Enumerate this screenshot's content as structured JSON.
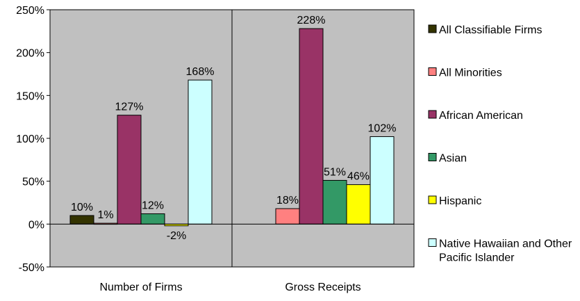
{
  "chart_data": {
    "type": "bar",
    "categories": [
      "Number of Firms",
      "Gross Receipts"
    ],
    "series": [
      {
        "name": "All Classifiable Firms",
        "color": "#333300",
        "values": [
          10,
          null
        ],
        "labels": [
          "10%",
          null
        ]
      },
      {
        "name": "All Minorities",
        "color": "#ff8080",
        "values": [
          1,
          18
        ],
        "labels": [
          "1%",
          "18%"
        ]
      },
      {
        "name": "African American",
        "color": "#993366",
        "values": [
          127,
          228
        ],
        "labels": [
          "127%",
          "228%"
        ]
      },
      {
        "name": "Asian",
        "color": "#339966",
        "values": [
          12,
          51
        ],
        "labels": [
          "12%",
          "51%"
        ]
      },
      {
        "name": "Hispanic",
        "color": "#ffff00",
        "values": [
          -2,
          46
        ],
        "labels": [
          "-2%",
          "46%"
        ]
      },
      {
        "name": "Native Hawaiian and Other Pacific Islander",
        "color": "#ccffff",
        "values": [
          168,
          102
        ],
        "labels": [
          "168%",
          "102%"
        ]
      }
    ],
    "yticks": [
      "250%",
      "200%",
      "150%",
      "100%",
      "50%",
      "0%",
      "-50%"
    ],
    "ylim": [
      -50,
      250
    ],
    "plot_background": "#c0c0c0",
    "grid": false,
    "legend_position": "right"
  }
}
